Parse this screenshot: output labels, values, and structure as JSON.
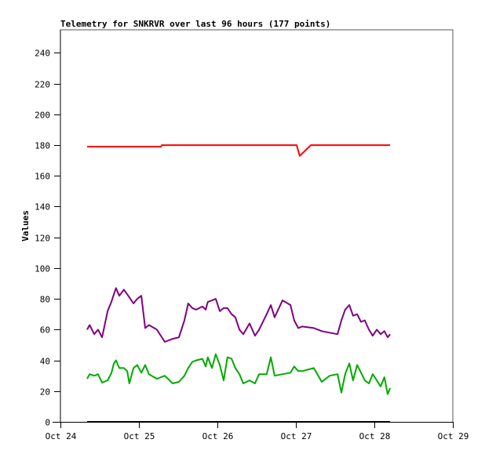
{
  "chart_data": {
    "type": "line",
    "title": "Telemetry for SNKRVR over last 96 hours (177 points)",
    "xlabel": "",
    "ylabel": "Values",
    "xlim": [
      "Oct 24 00:00",
      "Oct 29 00:00"
    ],
    "ylim": [
      0,
      255
    ],
    "x_ticks": [
      "Oct 24",
      "Oct 25",
      "Oct 26",
      "Oct 27",
      "Oct 28",
      "Oct 29"
    ],
    "y_ticks": [
      0,
      20,
      40,
      60,
      80,
      100,
      120,
      140,
      160,
      180,
      200,
      220,
      240
    ],
    "grid": false,
    "legend": "none",
    "x": [
      "Oct 24 08:10",
      "Oct 24 08:55",
      "Oct 24 10:20",
      "Oct 24 11:30",
      "Oct 24 12:45",
      "Oct 24 14:25",
      "Oct 24 15:35",
      "Oct 24 16:20",
      "Oct 24 17:00",
      "Oct 24 18:00",
      "Oct 24 19:25",
      "Oct 24 20:25",
      "Oct 24 21:05",
      "Oct 24 22:20",
      "Oct 24 23:30",
      "Oct 25 00:45",
      "Oct 25 01:55",
      "Oct 25 03:05",
      "Oct 25 05:30",
      "Oct 25 07:55",
      "Oct 25 10:20",
      "Oct 25 12:15",
      "Oct 25 13:55",
      "Oct 25 15:05",
      "Oct 25 16:20",
      "Oct 25 17:30",
      "Oct 25 19:25",
      "Oct 25 20:25",
      "Oct 25 21:05",
      "Oct 25 22:20",
      "Oct 25 23:30",
      "Oct 26 00:45",
      "Oct 26 01:55",
      "Oct 26 03:05",
      "Oct 26 04:20",
      "Oct 26 05:30",
      "Oct 26 06:45",
      "Oct 26 07:55",
      "Oct 26 09:50",
      "Oct 26 11:30",
      "Oct 26 12:45",
      "Oct 26 15:05",
      "Oct 26 16:20",
      "Oct 26 17:30",
      "Oct 26 19:55",
      "Oct 26 22:20",
      "Oct 26 23:30",
      "Oct 27 00:45",
      "Oct 27 01:55",
      "Oct 27 05:30",
      "Oct 27 07:55",
      "Oct 27 10:20",
      "Oct 27 12:45",
      "Oct 27 13:55",
      "Oct 27 15:05",
      "Oct 27 16:20",
      "Oct 27 17:30",
      "Oct 27 18:45",
      "Oct 27 19:55",
      "Oct 27 21:05",
      "Oct 27 22:20",
      "Oct 27 23:30",
      "Oct 28 00:45",
      "Oct 28 01:55",
      "Oct 28 03:05",
      "Oct 28 04:05",
      "Oct 28 04:50"
    ],
    "series": [
      {
        "color": "#00aa00",
        "values": [
          28,
          31,
          30,
          31,
          25.5,
          27,
          31.6,
          38,
          40,
          35,
          35,
          33,
          25,
          35,
          37,
          32,
          37,
          31,
          28,
          30,
          25,
          26,
          30,
          35,
          39,
          40,
          41,
          36,
          42,
          35,
          44,
          37,
          27,
          42,
          41,
          35,
          31,
          25,
          27,
          25,
          31,
          31,
          42,
          30,
          31,
          32,
          36,
          33,
          33,
          35,
          26,
          30,
          31,
          19,
          31,
          38,
          27,
          37,
          32,
          27,
          25,
          31,
          27,
          23,
          29,
          18,
          22
        ]
      },
      {
        "color": "#800080",
        "values": [
          60,
          63,
          57,
          60,
          55,
          72,
          78,
          83,
          87,
          82,
          86,
          83,
          81,
          77,
          80,
          82,
          61,
          63,
          60,
          52,
          54,
          55,
          66,
          77,
          74,
          73,
          75,
          73,
          78,
          79,
          80,
          72,
          74,
          74,
          70,
          68,
          60,
          57,
          64,
          56,
          60,
          70,
          76,
          68,
          79,
          76,
          66,
          61,
          62,
          61,
          59,
          58,
          57,
          66,
          73,
          76,
          69,
          70,
          65,
          66,
          60,
          56,
          60,
          57,
          59,
          55,
          57
        ]
      },
      {
        "color": "#ff0000",
        "points": [
          [
            "Oct 24 08:10",
            179
          ],
          [
            "Oct 25 06:45",
            179
          ],
          [
            "Oct 25 07:00",
            180
          ],
          [
            "Oct 27 00:15",
            180
          ],
          [
            "Oct 27 01:10",
            173
          ],
          [
            "Oct 27 04:35",
            180
          ],
          [
            "Oct 28 04:50",
            180
          ]
        ]
      },
      {
        "color": "#000000",
        "points": [
          [
            "Oct 24 08:10",
            0
          ],
          [
            "Oct 28 04:50",
            0
          ]
        ]
      }
    ]
  }
}
